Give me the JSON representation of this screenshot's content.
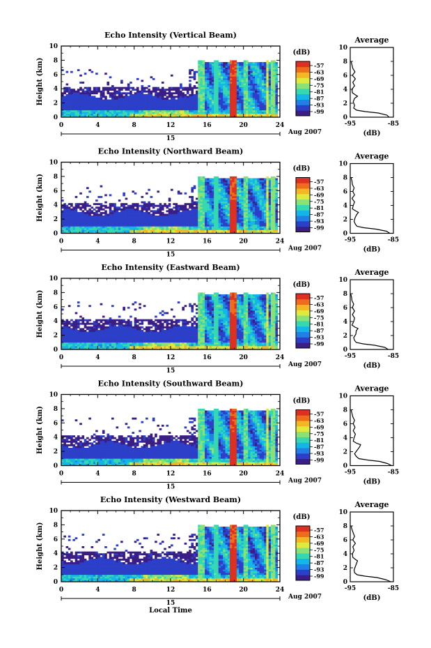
{
  "figure": {
    "x_axis_title": "Local Time",
    "month_label": "Aug 2007",
    "day_label": "15",
    "colorbar_unit": "(dB)",
    "avg_title": "Average",
    "avg_xlabel": "(dB)",
    "y_axis_title": "Height (km)"
  },
  "colors": {
    "scale": [
      "#3a1e86",
      "#2c3fc8",
      "#2080e6",
      "#14b6e8",
      "#36d8b0",
      "#8ae276",
      "#e0ea3c",
      "#f4b624",
      "#ee6c1c",
      "#dc3022"
    ]
  },
  "chart_data": [
    {
      "type": "heatmap",
      "title": "Echo Intensity (Vertical Beam)",
      "xlabel": "Local Time",
      "ylabel": "Height (km)",
      "x_ticks": [
        0,
        4,
        8,
        12,
        16,
        20,
        24
      ],
      "y_ticks": [
        0,
        2,
        4,
        6,
        8,
        10
      ],
      "xlim": [
        0,
        24
      ],
      "ylim": [
        0,
        10
      ],
      "colorbar": {
        "label": "(dB)",
        "ticks": [
          -57,
          -63,
          -69,
          -75,
          -81,
          -87,
          -93,
          -99
        ]
      },
      "profile": {
        "title": "Average",
        "xlabel": "(dB)",
        "x_ticks": [
          -95,
          -85
        ],
        "y_ticks": [
          0,
          2,
          4,
          6,
          8,
          10
        ],
        "heights": [
          0.0,
          0.3,
          0.6,
          0.8,
          1.0,
          1.3,
          1.7,
          2.2,
          2.7,
          3.0,
          3.2,
          3.5,
          4.0,
          4.5,
          5.0,
          5.5,
          6.0,
          6.5,
          7.0,
          7.5,
          8.0
        ],
        "values": [
          -86.0,
          -86.5,
          -88.5,
          -91.5,
          -93.5,
          -94.2,
          -94.0,
          -94.3,
          -94.0,
          -93.3,
          -93.8,
          -94.5,
          -94.6,
          -94.0,
          -94.4,
          -93.8,
          -94.5,
          -93.9,
          -94.4,
          -94.6,
          -94.8
        ]
      }
    },
    {
      "type": "heatmap",
      "title": "Echo Intensity (Northward Beam)",
      "xlabel": "Local Time",
      "ylabel": "Height (km)",
      "x_ticks": [
        0,
        4,
        8,
        12,
        16,
        20,
        24
      ],
      "y_ticks": [
        0,
        2,
        4,
        6,
        8,
        10
      ],
      "xlim": [
        0,
        24
      ],
      "ylim": [
        0,
        10
      ],
      "colorbar": {
        "label": "(dB)",
        "ticks": [
          -57,
          -63,
          -69,
          -75,
          -81,
          -87,
          -93,
          -99
        ]
      },
      "profile": {
        "title": "Average",
        "xlabel": "(dB)",
        "x_ticks": [
          -95,
          -85
        ],
        "y_ticks": [
          0,
          2,
          4,
          6,
          8,
          10
        ],
        "heights": [
          0.0,
          0.3,
          0.6,
          0.8,
          1.0,
          1.3,
          1.7,
          2.2,
          2.7,
          3.0,
          3.2,
          3.5,
          4.0,
          4.5,
          5.0,
          5.5,
          6.0,
          6.5,
          7.0,
          7.5,
          8.0
        ],
        "values": [
          -85.8,
          -86.6,
          -89.0,
          -91.8,
          -93.4,
          -93.8,
          -94.1,
          -93.9,
          -93.5,
          -93.1,
          -93.7,
          -94.5,
          -94.3,
          -94.0,
          -94.6,
          -94.0,
          -94.4,
          -94.1,
          -94.5,
          -94.6,
          -94.8
        ]
      }
    },
    {
      "type": "heatmap",
      "title": "Echo Intensity (Eastward Beam)",
      "xlabel": "Local Time",
      "ylabel": "Height (km)",
      "x_ticks": [
        0,
        4,
        8,
        12,
        16,
        20,
        24
      ],
      "y_ticks": [
        0,
        2,
        4,
        6,
        8,
        10
      ],
      "xlim": [
        0,
        24
      ],
      "ylim": [
        0,
        10
      ],
      "colorbar": {
        "label": "(dB)",
        "ticks": [
          -57,
          -63,
          -69,
          -75,
          -81,
          -87,
          -93,
          -99
        ]
      },
      "profile": {
        "title": "Average",
        "xlabel": "(dB)",
        "x_ticks": [
          -95,
          -85
        ],
        "y_ticks": [
          0,
          2,
          4,
          6,
          8,
          10
        ],
        "heights": [
          0.0,
          0.3,
          0.6,
          0.8,
          1.0,
          1.3,
          1.7,
          2.2,
          2.7,
          3.0,
          3.2,
          3.5,
          4.0,
          4.5,
          5.0,
          5.5,
          6.0,
          6.5,
          7.0,
          7.5,
          8.0
        ],
        "values": [
          -86.2,
          -87.0,
          -89.3,
          -92.0,
          -93.6,
          -94.0,
          -94.2,
          -93.7,
          -93.6,
          -93.2,
          -93.9,
          -94.6,
          -94.2,
          -94.0,
          -94.5,
          -94.0,
          -94.5,
          -94.2,
          -94.6,
          -94.7,
          -94.9
        ]
      }
    },
    {
      "type": "heatmap",
      "title": "Echo Intensity (Southward Beam)",
      "xlabel": "Local Time",
      "ylabel": "Height (km)",
      "x_ticks": [
        0,
        4,
        8,
        12,
        16,
        20,
        24
      ],
      "y_ticks": [
        0,
        2,
        4,
        6,
        8,
        10
      ],
      "xlim": [
        0,
        24
      ],
      "ylim": [
        0,
        10
      ],
      "colorbar": {
        "label": "(dB)",
        "ticks": [
          -57,
          -63,
          -69,
          -75,
          -81,
          -87,
          -93,
          -99
        ]
      },
      "profile": {
        "title": "Average",
        "xlabel": "(dB)",
        "x_ticks": [
          -95,
          -85
        ],
        "y_ticks": [
          0,
          2,
          4,
          6,
          8,
          10
        ],
        "heights": [
          0.0,
          0.3,
          0.6,
          0.8,
          1.0,
          1.3,
          1.7,
          2.2,
          2.7,
          3.0,
          3.2,
          3.5,
          4.0,
          4.5,
          5.0,
          5.5,
          6.0,
          6.5,
          7.0,
          7.5,
          8.0
        ],
        "values": [
          -85.4,
          -86.4,
          -88.2,
          -91.0,
          -93.0,
          -93.6,
          -94.0,
          -93.4,
          -92.8,
          -92.6,
          -93.5,
          -94.3,
          -94.1,
          -93.8,
          -94.3,
          -93.9,
          -94.3,
          -94.0,
          -94.4,
          -94.6,
          -94.8
        ]
      }
    },
    {
      "type": "heatmap",
      "title": "Echo Intensity (Westward Beam)",
      "xlabel": "Local Time",
      "ylabel": "Height (km)",
      "x_ticks": [
        0,
        4,
        8,
        12,
        16,
        20,
        24
      ],
      "y_ticks": [
        0,
        2,
        4,
        6,
        8,
        10
      ],
      "xlim": [
        0,
        24
      ],
      "ylim": [
        0,
        10
      ],
      "colorbar": {
        "label": "(dB)",
        "ticks": [
          -57,
          -63,
          -69,
          -75,
          -81,
          -87,
          -93,
          -99
        ]
      },
      "profile": {
        "title": "Average",
        "xlabel": "(dB)",
        "x_ticks": [
          -95,
          -85
        ],
        "y_ticks": [
          0,
          2,
          4,
          6,
          8,
          10
        ],
        "heights": [
          0.0,
          0.3,
          0.6,
          0.8,
          1.0,
          1.3,
          1.7,
          2.2,
          2.7,
          3.0,
          3.2,
          3.5,
          4.0,
          4.5,
          5.0,
          5.5,
          6.0,
          6.5,
          7.0,
          7.5,
          8.0
        ],
        "values": [
          -85.6,
          -86.8,
          -88.8,
          -91.6,
          -93.4,
          -94.0,
          -94.1,
          -93.8,
          -93.5,
          -93.3,
          -93.8,
          -94.4,
          -94.5,
          -94.1,
          -94.4,
          -93.8,
          -94.4,
          -94.0,
          -94.3,
          -94.6,
          -94.8
        ]
      }
    }
  ]
}
